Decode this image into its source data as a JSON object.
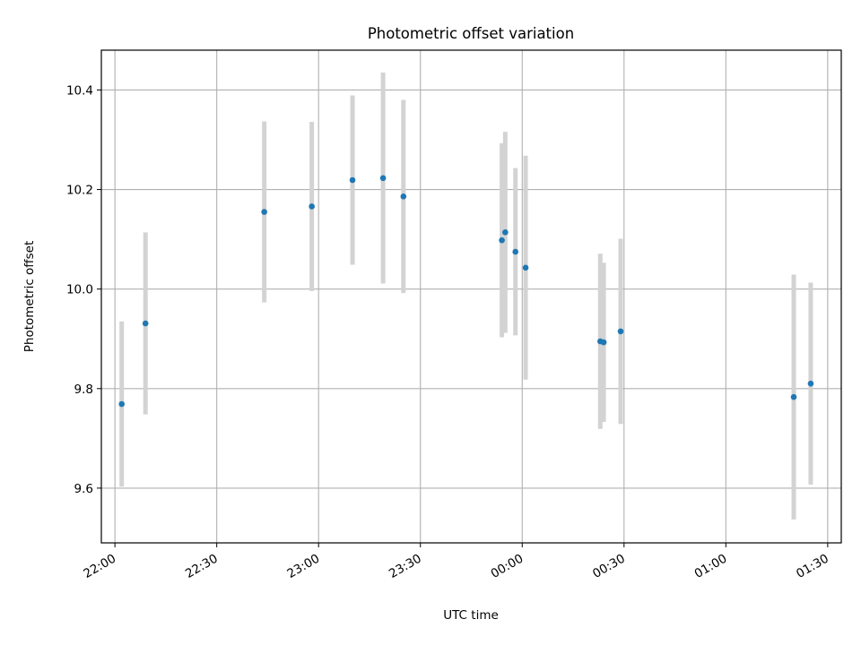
{
  "chart_data": {
    "type": "scatter",
    "title": "Photometric offset variation",
    "xlabel": "UTC time",
    "ylabel": "Photometric offset",
    "xlim": [
      "21:56",
      "01:34"
    ],
    "ylim": [
      9.49,
      10.48
    ],
    "x_ticks": [
      "22:00",
      "22:30",
      "23:00",
      "23:30",
      "00:00",
      "00:30",
      "01:00",
      "01:30"
    ],
    "y_ticks": [
      "9.6",
      "9.8",
      "10.0",
      "10.2",
      "10.4"
    ],
    "grid": true,
    "colors": {
      "point": "#1f77b4",
      "errorbar": "#d3d3d3",
      "grid": "#b0b0b0"
    },
    "points": [
      {
        "x": "22:02",
        "y": 9.769,
        "err": 0.166
      },
      {
        "x": "22:09",
        "y": 9.931,
        "err": 0.183
      },
      {
        "x": "22:44",
        "y": 10.155,
        "err": 0.182
      },
      {
        "x": "22:58",
        "y": 10.166,
        "err": 0.17
      },
      {
        "x": "23:10",
        "y": 10.219,
        "err": 0.17
      },
      {
        "x": "23:19",
        "y": 10.223,
        "err": 0.212
      },
      {
        "x": "23:25",
        "y": 10.186,
        "err": 0.194
      },
      {
        "x": "23:54",
        "y": 10.098,
        "err": 0.195
      },
      {
        "x": "23:55",
        "y": 10.114,
        "err": 0.202
      },
      {
        "x": "23:58",
        "y": 10.075,
        "err": 0.168
      },
      {
        "x": "00:01",
        "y": 10.043,
        "err": 0.225
      },
      {
        "x": "00:23",
        "y": 9.895,
        "err": 0.176
      },
      {
        "x": "00:24",
        "y": 9.893,
        "err": 0.16
      },
      {
        "x": "00:29",
        "y": 9.915,
        "err": 0.186
      },
      {
        "x": "01:20",
        "y": 9.783,
        "err": 0.246
      },
      {
        "x": "01:25",
        "y": 9.81,
        "err": 0.203
      }
    ]
  }
}
